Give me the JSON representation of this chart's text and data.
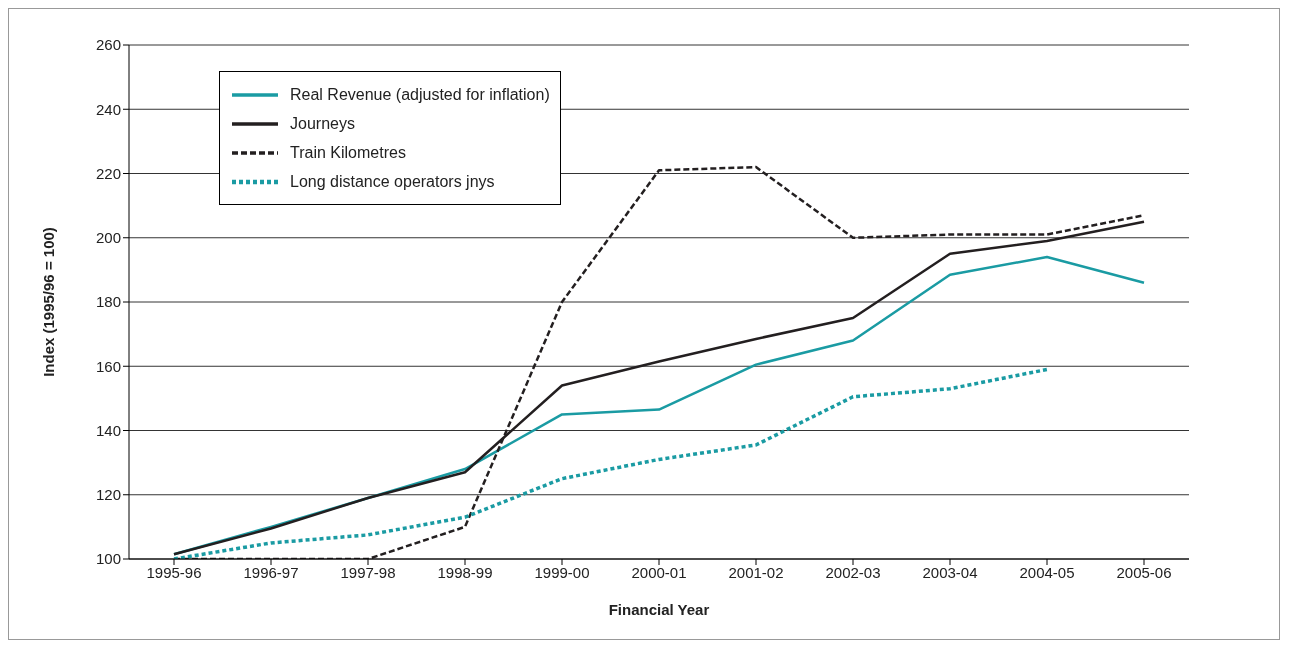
{
  "chart_data": {
    "type": "line",
    "xlabel": "Financial Year",
    "ylabel": "Index (1995/96 = 100)",
    "categories": [
      "1995-96",
      "1996-97",
      "1997-98",
      "1998-99",
      "1999-00",
      "2000-01",
      "2001-02",
      "2002-03",
      "2003-04",
      "2004-05",
      "2005-06"
    ],
    "series": [
      {
        "name": "Real Revenue (adjusted for inflation)",
        "color": "#1a9ba3",
        "line_style": "solid",
        "values": [
          101.5,
          110,
          119,
          128,
          145,
          146.5,
          160.5,
          168,
          188.5,
          194,
          186
        ]
      },
      {
        "name": "Journeys",
        "color": "#231f20",
        "line_style": "solid",
        "values": [
          101.5,
          109.5,
          119,
          127,
          154,
          161.5,
          168.5,
          175,
          195,
          199,
          205
        ]
      },
      {
        "name": "Train Kilometres",
        "color": "#231f20",
        "line_style": "dashed",
        "values": [
          100,
          100,
          100,
          110,
          180,
          221,
          222,
          200,
          201,
          201,
          207
        ]
      },
      {
        "name": "Long distance operators jnys",
        "color": "#1a9ba3",
        "line_style": "dotted",
        "values": [
          100,
          105,
          107.5,
          113,
          125,
          131,
          135.5,
          150.5,
          153,
          159,
          null
        ]
      }
    ],
    "ylim": [
      100,
      260
    ],
    "yticks": [
      100,
      120,
      140,
      160,
      180,
      200,
      220,
      240,
      260
    ],
    "grid": "y",
    "legend": "top left",
    "marker": "none"
  }
}
